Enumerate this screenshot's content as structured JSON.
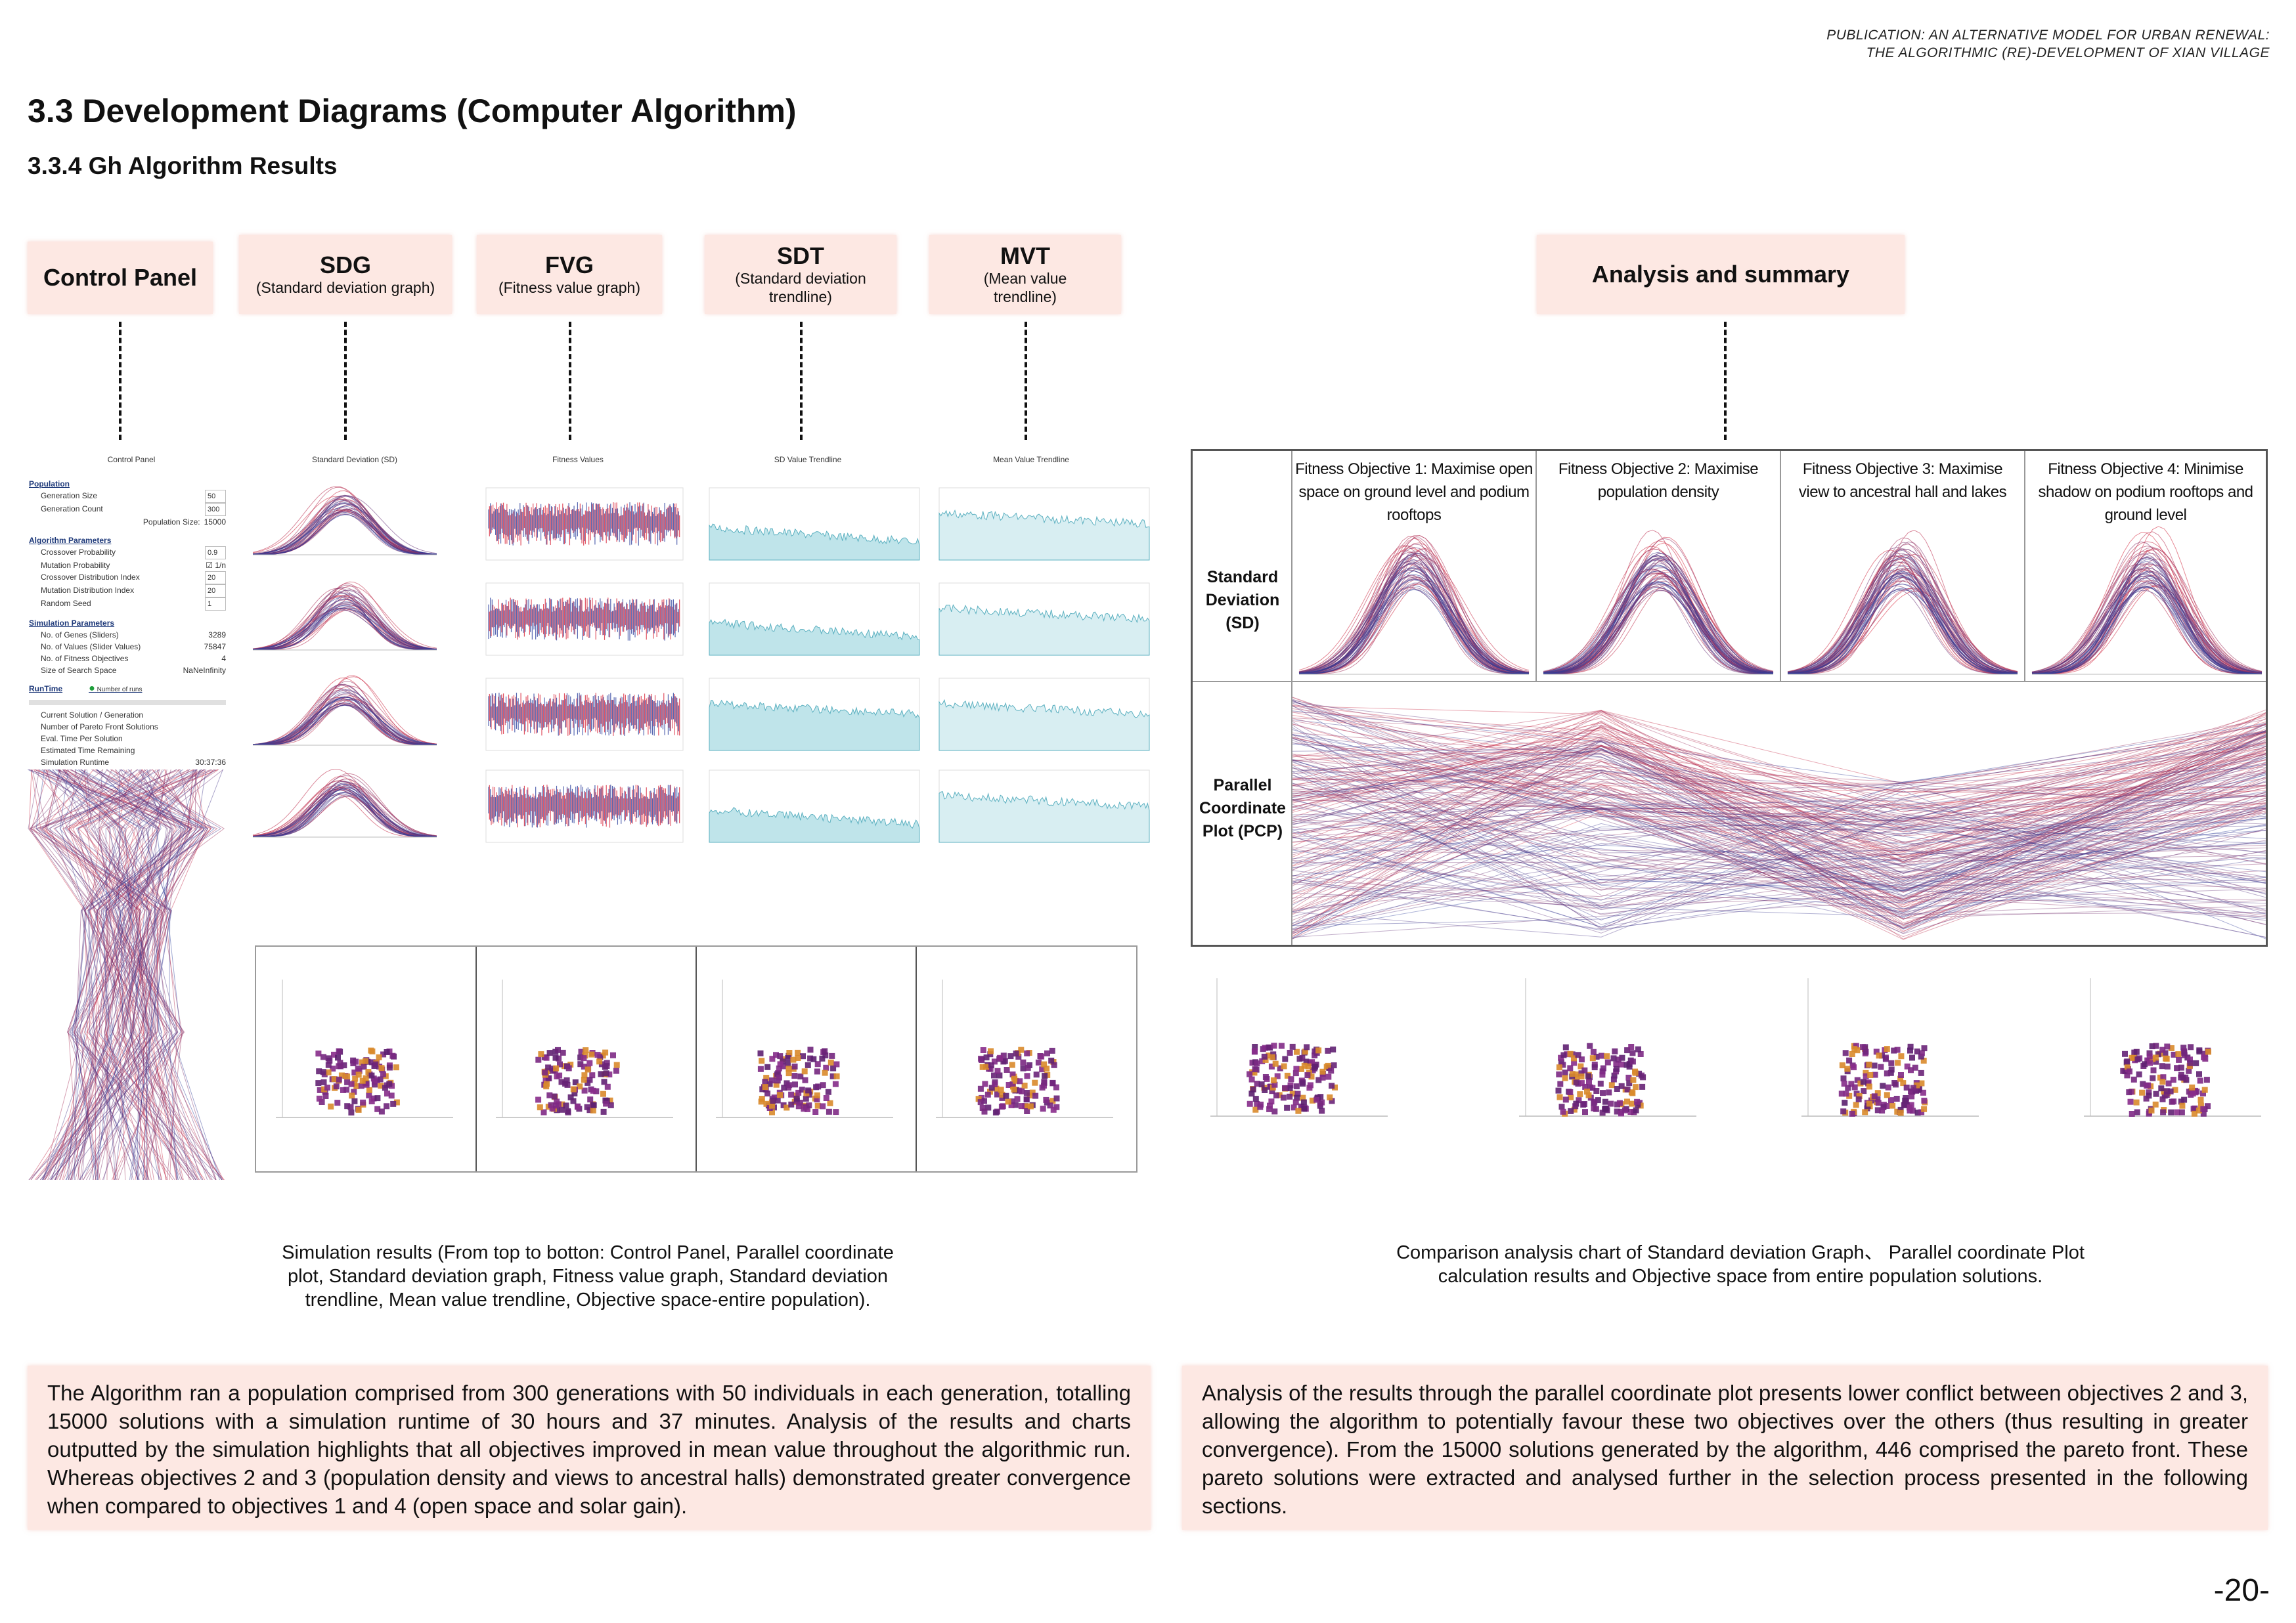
{
  "publication": {
    "line1": "PUBLICATION: AN ALTERNATIVE MODEL FOR URBAN RENEWAL:",
    "line2": "THE ALGORITHMIC (RE)-DEVELOPMENT OF XIAN VILLAGE"
  },
  "heading": "3.3 Development Diagrams (Computer Algorithm)",
  "subheading": "3.3.4 Gh Algorithm Results",
  "headers": {
    "control_panel": "Control Panel",
    "sdg_title": "SDG",
    "sdg_sub": "(Standard deviation graph)",
    "fvg_title": "FVG",
    "fvg_sub": "(Fitness value graph)",
    "sdt_title": "SDT",
    "sdt_sub": "(Standard deviation trendline)",
    "mvt_title": "MVT",
    "mvt_sub": "(Mean value trendline)",
    "analysis": "Analysis and summary"
  },
  "screenshot_titles": {
    "control": "Control Panel",
    "sd": "Standard Deviation (SD)",
    "fitness": "Fitness Values",
    "sdt": "SD Value Trendline",
    "mvt": "Mean Value Trendline"
  },
  "control_panel": {
    "population": "Population",
    "generation_size_label": "Generation Size",
    "generation_size": "50",
    "generation_count_label": "Generation Count",
    "generation_count": "300",
    "population_size_label": "Population Size:",
    "population_size": "15000",
    "algorithm_parameters": "Algorithm Parameters",
    "crossover_probability_label": "Crossover Probability",
    "crossover_probability": "0.9",
    "mutation_probability_label": "Mutation Probability",
    "mutation_probability": "1/n",
    "crossover_distribution_label": "Crossover Distribution Index",
    "crossover_distribution": "20",
    "mutation_distribution_label": "Mutation Distribution Index",
    "mutation_distribution": "20",
    "random_seed_label": "Random Seed",
    "random_seed": "1",
    "simulation_parameters": "Simulation Parameters",
    "genes_label": "No. of Genes (Sliders)",
    "genes": "3289",
    "values_label": "No. of Values (Slider Values)",
    "values": "75847",
    "objectives_label": "No. of Fitness Objectives",
    "objectives": "4",
    "search_space_label": "Size of Search Space",
    "search_space": "NaNeInfinity",
    "runtime": "RunTime",
    "number_of_runs": "Number of runs",
    "current_solution": "Current Solution / Generation",
    "pareto_count": "Number of Pareto Front Solutions",
    "eval_time": "Eval. Time Per Solution",
    "est_time": "Estimated Time Remaining",
    "sim_runtime_label": "Simulation Runtime",
    "sim_runtime": "30:37:36"
  },
  "analysis_grid": {
    "col1": "Fitness Objective 1: Maximise open space on ground level and podium rooftops",
    "col2": "Fitness Objective 2: Maximise population density",
    "col3": "Fitness Objective 3: Maximise view to ancestral hall and lakes",
    "col4": "Fitness Objective 4: Minimise shadow on podium rooftops and ground level",
    "row1": "Standard Deviation (SD)",
    "row2": "Parallel Coordinate Plot (PCP)"
  },
  "captions": {
    "left": "Simulation results (From top to botton: Control Panel, Parallel coordinate plot, Standard deviation graph, Fitness value graph, Standard deviation trendline, Mean value trendline, Objective space-entire population).",
    "right": "Comparison analysis chart of Standard deviation Graph、 Parallel coordinate Plot calculation results and Objective space from entire population solutions."
  },
  "text": {
    "left": "The Algorithm ran a population comprised from 300 generations with 50 individuals in each generation, totalling 15000 solutions with a simulation runtime of 30 hours and 37 minutes. Analysis of the results and charts outputted by the simulation highlights that all objectives improved in mean value throughout the algorithmic run. Whereas objectives 2 and 3 (population density and views to ancestral halls) demonstrated greater convergence when compared to objectives 1 and 4 (open space and solar gain).",
    "right": "Analysis of the results through the parallel coordinate plot presents lower conflict between objectives 2 and 3, allowing the algorithm to potentially favour these two objectives over the others (thus resulting in greater convergence). From the 15000 solutions generated by the algorithm, 446 comprised the pareto front. These pareto solutions were extracted and analysed further in the selection process presented in the following sections."
  },
  "page_number": "-20-",
  "colors": {
    "header_bg": "#fde8e3",
    "red": "#d8283c",
    "blue": "#2a3e9c",
    "teal": "#bfe4ea",
    "purple": "#8a2d8c",
    "orange": "#d98a2b"
  }
}
